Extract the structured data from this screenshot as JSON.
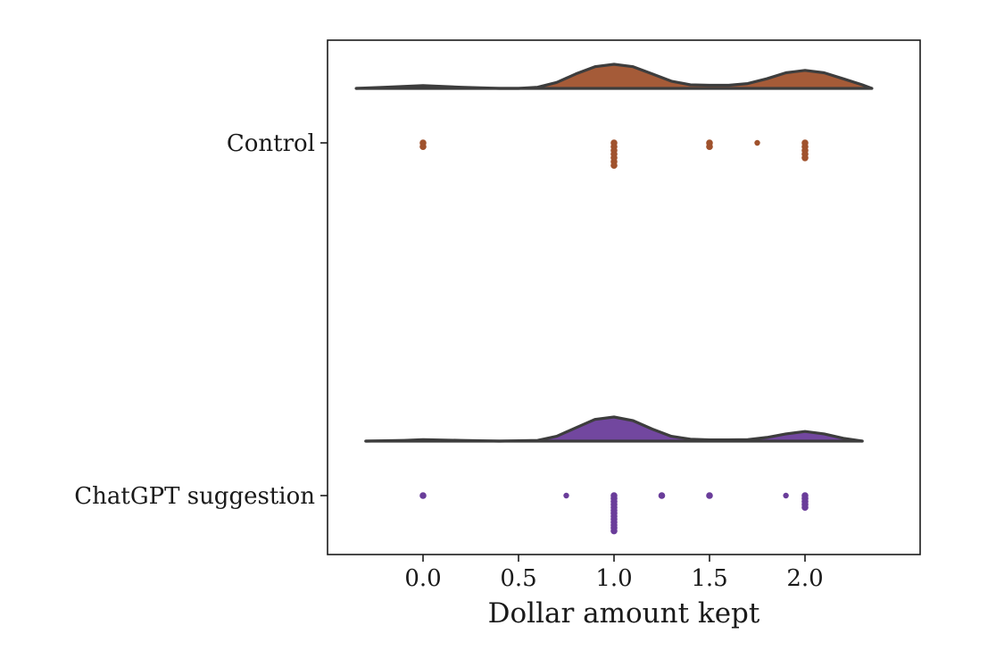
{
  "chart_data": {
    "type": "raincloud",
    "xlabel": "Dollar amount kept",
    "ylabel": "",
    "xlim": [
      -0.5,
      2.6
    ],
    "xticks": [
      0.0,
      0.5,
      1.0,
      1.5,
      2.0
    ],
    "xtick_labels": [
      "0.0",
      "0.5",
      "1.0",
      "1.5",
      "2.0"
    ],
    "grid": false,
    "legend": "none",
    "groups": [
      {
        "label": "Control",
        "color": "#a0522d",
        "density": {
          "x": [
            -0.35,
            -0.2,
            0.0,
            0.2,
            0.4,
            0.5,
            0.6,
            0.7,
            0.8,
            0.9,
            1.0,
            1.1,
            1.2,
            1.3,
            1.4,
            1.5,
            1.6,
            1.7,
            1.8,
            1.9,
            2.0,
            2.1,
            2.2,
            2.3,
            2.35
          ],
          "y": [
            0.0,
            0.05,
            0.12,
            0.05,
            0.0,
            0.0,
            0.05,
            0.25,
            0.6,
            0.9,
            1.0,
            0.9,
            0.6,
            0.3,
            0.15,
            0.13,
            0.13,
            0.2,
            0.4,
            0.65,
            0.75,
            0.65,
            0.4,
            0.15,
            0.0
          ]
        },
        "points": [
          {
            "x": 0.0,
            "n": 2
          },
          {
            "x": 1.0,
            "n": 7
          },
          {
            "x": 1.5,
            "n": 2
          },
          {
            "x": 1.75,
            "n": 1
          },
          {
            "x": 2.0,
            "n": 5
          }
        ]
      },
      {
        "label": "ChatGPT suggestion",
        "color": "#6a3d9a",
        "density": {
          "x": [
            -0.3,
            -0.1,
            0.0,
            0.2,
            0.4,
            0.6,
            0.7,
            0.8,
            0.9,
            1.0,
            1.1,
            1.2,
            1.3,
            1.4,
            1.5,
            1.6,
            1.7,
            1.8,
            1.9,
            2.0,
            2.1,
            2.2,
            2.3
          ],
          "y": [
            0.0,
            0.03,
            0.06,
            0.03,
            0.0,
            0.03,
            0.2,
            0.55,
            0.9,
            1.0,
            0.85,
            0.5,
            0.2,
            0.08,
            0.05,
            0.05,
            0.06,
            0.15,
            0.3,
            0.4,
            0.3,
            0.12,
            0.0
          ]
        },
        "points": [
          {
            "x": 0.0,
            "n": 1
          },
          {
            "x": 0.75,
            "n": 1
          },
          {
            "x": 1.0,
            "n": 13
          },
          {
            "x": 1.25,
            "n": 1
          },
          {
            "x": 1.5,
            "n": 1
          },
          {
            "x": 1.9,
            "n": 1
          },
          {
            "x": 2.0,
            "n": 5
          }
        ]
      }
    ]
  }
}
